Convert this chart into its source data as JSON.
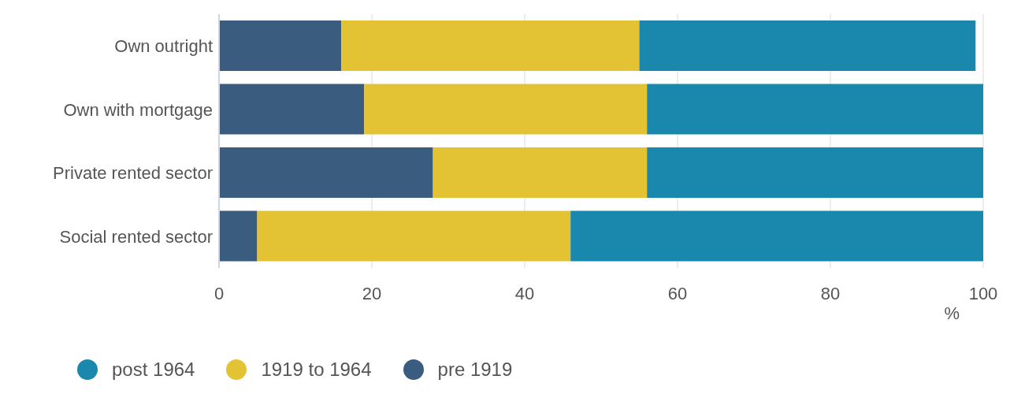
{
  "chart_data": {
    "type": "bar",
    "orientation": "horizontal",
    "stacked": true,
    "xlabel": "%",
    "categories": [
      "Own outright",
      "Own with mortgage",
      "Private rented sector",
      "Social rented sector"
    ],
    "series": [
      {
        "name": "pre 1919",
        "color": "#3a5c7e",
        "values": [
          16,
          19,
          28,
          5
        ]
      },
      {
        "name": "1919 to 1964",
        "color": "#e3c234",
        "values": [
          39,
          37,
          28,
          41
        ]
      },
      {
        "name": "post 1964",
        "color": "#1a87ad",
        "values": [
          44,
          44,
          44,
          54
        ]
      }
    ],
    "xlim": [
      0,
      100
    ],
    "xticks": [
      0,
      20,
      40,
      60,
      80,
      100
    ],
    "grid": "x",
    "legend": "bottom"
  }
}
